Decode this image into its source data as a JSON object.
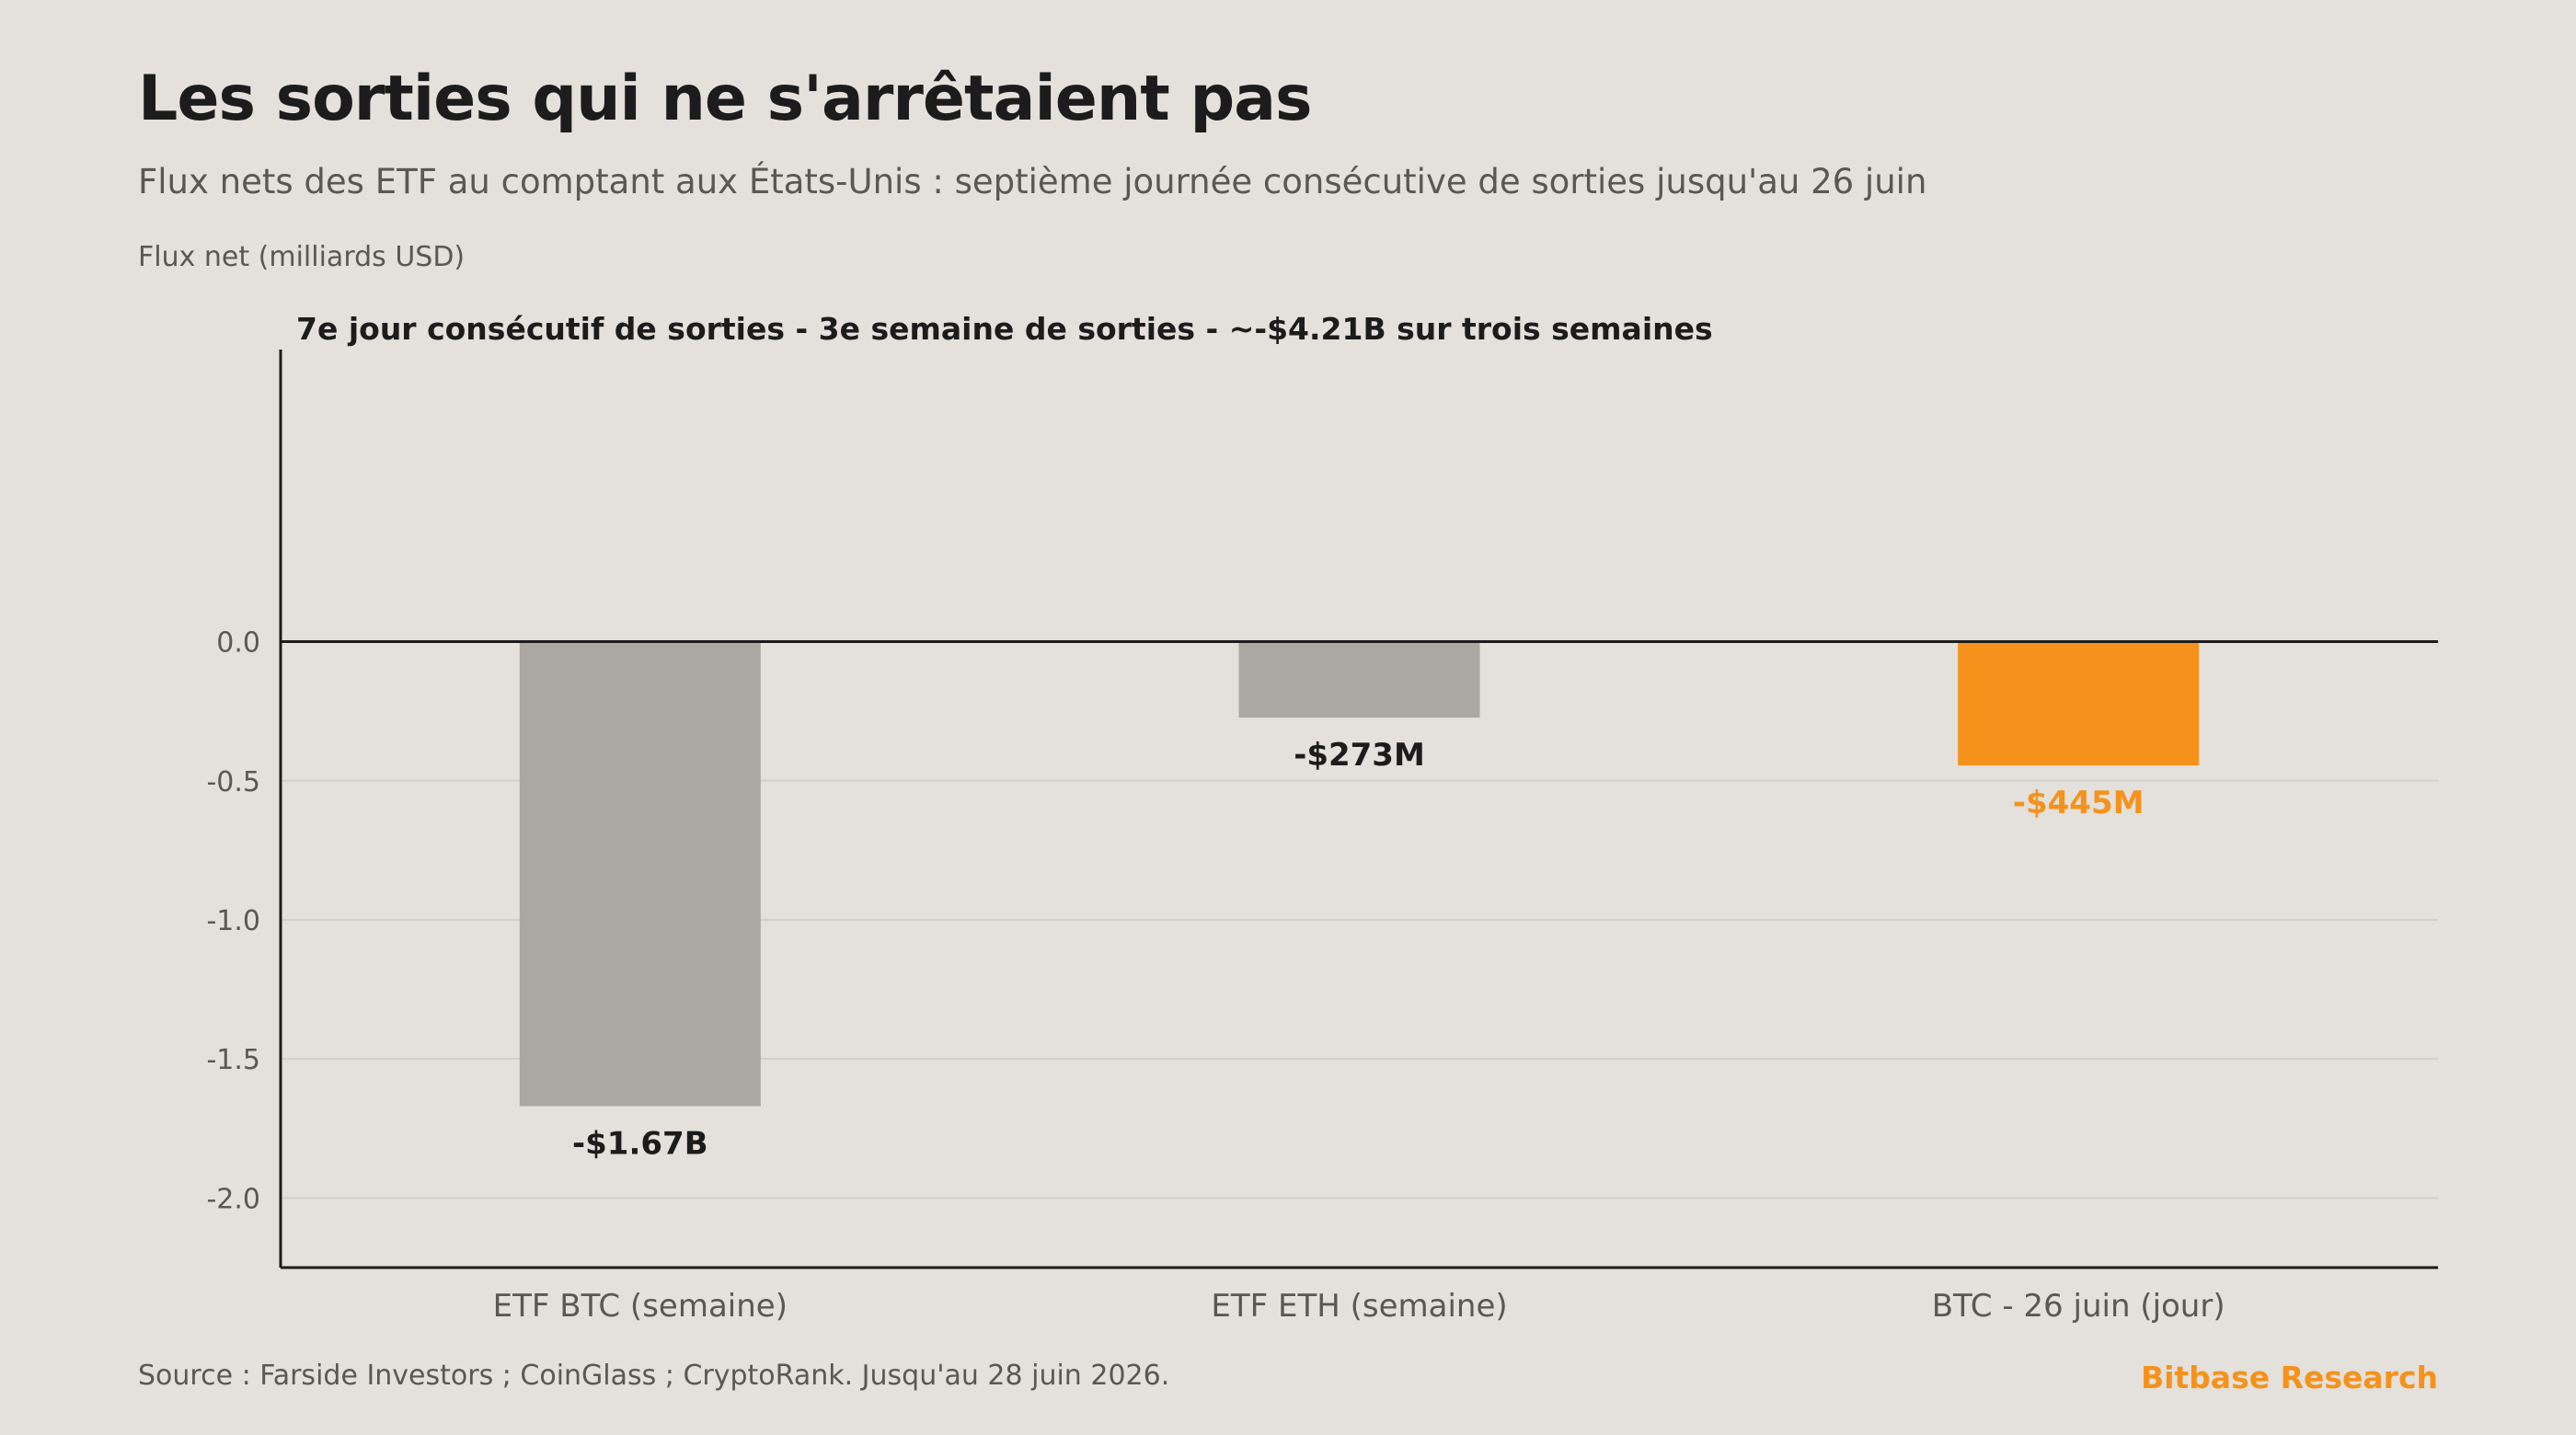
{
  "header": {
    "title": "Les sorties qui ne s'arrêtaient pas",
    "subtitle": "Flux nets des ETF au comptant aux États-Unis : septième journée consécutive de sorties jusqu'au 26 juin",
    "axis_label": "Flux net (milliards USD)"
  },
  "footer": {
    "source": "Source : Farside Investors ; CoinGlass ; CryptoRank. Jusqu'au 28 juin 2026.",
    "brand": "Bitbase Research"
  },
  "colors": {
    "background": "#e4e0db",
    "neutral_bar": "#aba7a1",
    "accent": "#f5921b",
    "text_dark": "#1c1c1c",
    "text_muted": "#5b5753",
    "grid": "#d3cfca"
  },
  "chart_data": {
    "type": "bar",
    "title": "Les sorties qui ne s'arrêtaient pas",
    "subtitle": "Flux nets des ETF au comptant aux États-Unis : septième journée consécutive de sorties jusqu'au 26 juin",
    "ylabel": "Flux net (milliards USD)",
    "xlabel": "",
    "annotation": "7e jour consécutif de sorties - 3e semaine de sorties - ~-$4.21B sur trois semaines",
    "categories": [
      "ETF BTC (semaine)",
      "ETF ETH (semaine)",
      "BTC - 26 juin (jour)"
    ],
    "values": [
      -1.67,
      -0.273,
      -0.445
    ],
    "data_labels": [
      "-$1.67B",
      "-$273M",
      "-$445M"
    ],
    "highlight": [
      false,
      false,
      true
    ],
    "ylim": [
      -2.25,
      1.05
    ],
    "yticks": [
      0.0,
      -0.5,
      -1.0,
      -1.5,
      -2.0
    ],
    "ytick_labels": [
      "0.0",
      "-0.5",
      "-1.0",
      "-1.5",
      "-2.0"
    ],
    "grid": true,
    "legend": "none"
  }
}
